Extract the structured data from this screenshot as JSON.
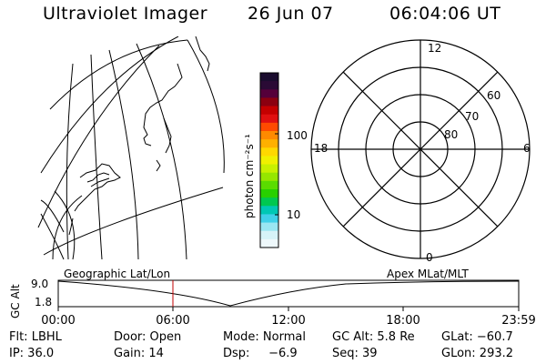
{
  "header": {
    "instrument": "Ultraviolet Imager",
    "date": "26 Jun 07",
    "time": "06:04:06 UT"
  },
  "colorbar": {
    "unit_label": "photon cm⁻²s⁻¹",
    "tick_100": "100",
    "tick_10": "10",
    "colors": [
      "#1a0c2e",
      "#2a0a35",
      "#55003a",
      "#8b0010",
      "#c40000",
      "#e01010",
      "#ff4a00",
      "#ff8a00",
      "#ffb000",
      "#ffd800",
      "#f0f000",
      "#c8f000",
      "#96e600",
      "#5adc00",
      "#28d000",
      "#00c850",
      "#00c8b4",
      "#40d0e8",
      "#9ae6f2",
      "#d6f3f8",
      "#eef8fb"
    ]
  },
  "polar_plot": {
    "mlt_labels": {
      "top": "12",
      "left": "18",
      "right": "6",
      "bottom": "0"
    },
    "lat_labels": [
      "60",
      "70",
      "80"
    ]
  },
  "timeline": {
    "left_title": "Geographic Lat/Lon",
    "right_title": "Apex  MLat/MLT",
    "axis_label": "GC Alt",
    "y_max": "9.0",
    "y_min": "1.8",
    "time_labels": [
      "00:00",
      "06:00",
      "12:00",
      "18:00",
      "23:59"
    ],
    "current_marker_color": "#c00000"
  },
  "info": {
    "row1": {
      "flt": "Flt: LBHL",
      "door": "Door: Open",
      "mode": "Mode: Normal",
      "gcalt": "GC Alt: 5.8 Re",
      "glat": "GLat: −60.7"
    },
    "row2": {
      "ip": "IP: 36.0",
      "gain": "Gain: 14",
      "dsp": "Dsp:     −6.9",
      "seq": "Seq: 39",
      "glon": "GLon: 293.2"
    }
  }
}
